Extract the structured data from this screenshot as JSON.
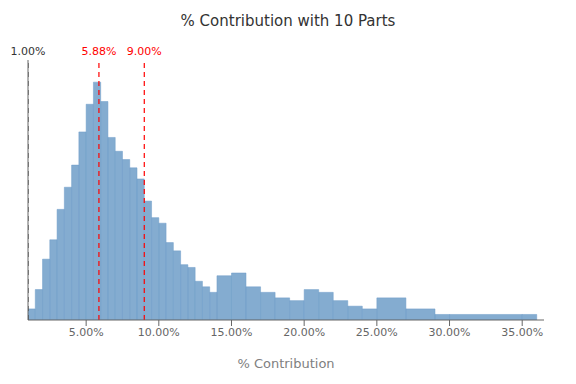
{
  "chart_data": {
    "type": "histogram",
    "title": "% Contribution with 10 Parts",
    "xlabel": "% Contribution",
    "bins": [
      1.0,
      1.5,
      2.0,
      2.5,
      3.0,
      3.5,
      4.0,
      4.5,
      5.0,
      5.5,
      6.0,
      6.5,
      7.0,
      7.5,
      8.0,
      8.5,
      9.0,
      9.5,
      10.0,
      10.5,
      11.0,
      11.5,
      12.0,
      12.5,
      13.0,
      13.5,
      14.0,
      15.0,
      16.0,
      17.0,
      18.0,
      19.0,
      20.0,
      21.0,
      22.0,
      23.0,
      24.0,
      25.0,
      27.0,
      29.0,
      30.0,
      35.0,
      36.0
    ],
    "values": [
      20,
      55,
      110,
      145,
      200,
      240,
      280,
      340,
      390,
      430,
      395,
      330,
      305,
      290,
      275,
      255,
      215,
      185,
      175,
      140,
      125,
      100,
      95,
      70,
      60,
      50,
      80,
      85,
      60,
      50,
      40,
      35,
      55,
      50,
      35,
      25,
      20,
      40,
      20,
      10,
      10,
      10
    ],
    "color": "#6f9dc8",
    "xlim": [
      1.0,
      36.5
    ],
    "ylim": [
      0,
      470
    ],
    "xticks": [
      {
        "value": 5.0,
        "label": "5.00%"
      },
      {
        "value": 10.0,
        "label": "10.00%"
      },
      {
        "value": 15.0,
        "label": "15.00%"
      },
      {
        "value": 20.0,
        "label": "20.00%"
      },
      {
        "value": 25.0,
        "label": "25.00%"
      },
      {
        "value": 30.0,
        "label": "30.00%"
      },
      {
        "value": 35.0,
        "label": "35.00%"
      }
    ],
    "yticks": [],
    "tick_labels": "x",
    "grid": false,
    "vlines": [
      {
        "x": 1.0,
        "label": "1.00%",
        "color": "#333333",
        "line_style": "dashed"
      },
      {
        "x": 5.88,
        "label": "5.88%",
        "color": "red",
        "line_style": "dashed"
      },
      {
        "x": 9.0,
        "label": "9.00%",
        "color": "red",
        "line_style": "dashed"
      }
    ]
  }
}
